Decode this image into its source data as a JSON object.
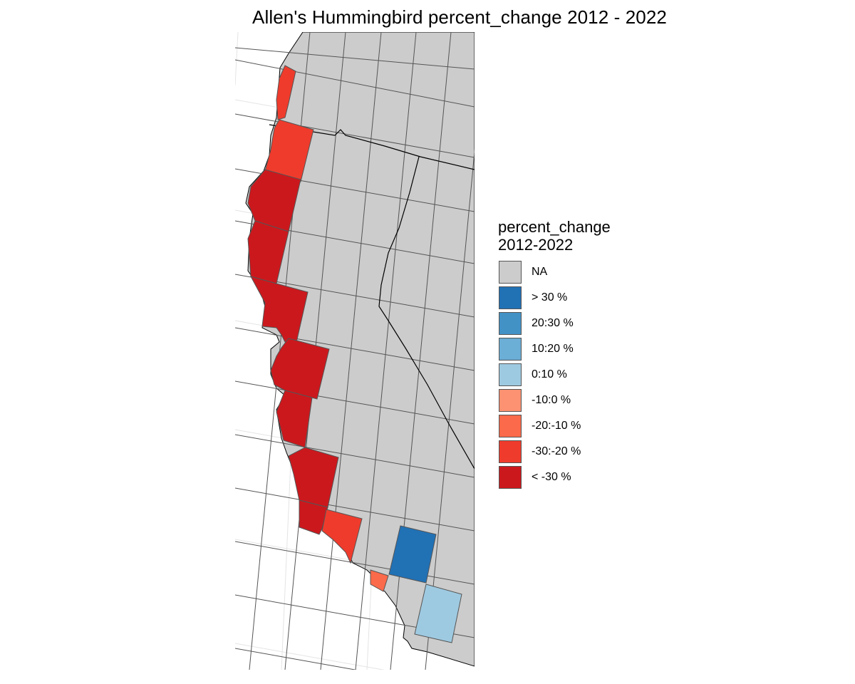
{
  "title": "Allen's Hummingbird percent_change 2012 - 2022",
  "legend": {
    "title": "percent_change\n2012-2022",
    "items": [
      {
        "label": "NA",
        "color": "#cccccc"
      },
      {
        "label": "> 30 %",
        "color": "#2171b5"
      },
      {
        "label": "20:30 %",
        "color": "#4292c6"
      },
      {
        "label": "10:20 %",
        "color": "#6baed6"
      },
      {
        "label": "0:10 %",
        "color": "#9ecae1"
      },
      {
        "label": "-10:0 %",
        "color": "#fc9272"
      },
      {
        "label": "-20:-10 %",
        "color": "#fb6a4a"
      },
      {
        "label": "-30:-20 %",
        "color": "#ef3b2c"
      },
      {
        "label": "< -30 %",
        "color": "#cb181d"
      }
    ]
  },
  "map": {
    "region": "US West Coast (Washington, Oregon, California)",
    "background_color": "#ffffff",
    "land_color": "#cccccc",
    "graticule_color": "#e6e6e6",
    "cell_border_color": "#555555",
    "highlighted_cells": [
      {
        "id": "wa-coast-1",
        "category": "-30:-20 %"
      },
      {
        "id": "or-north-coast",
        "category": "-30:-20 %"
      },
      {
        "id": "or-central-coast",
        "category": "< -30 %"
      },
      {
        "id": "or-south-coast",
        "category": "< -30 %"
      },
      {
        "id": "ca-north-coast",
        "category": "< -30 %"
      },
      {
        "id": "ca-sf-bay",
        "category": "< -30 %"
      },
      {
        "id": "ca-central-coast-1",
        "category": "< -30 %"
      },
      {
        "id": "ca-central-coast-2",
        "category": "< -30 %"
      },
      {
        "id": "ca-central-coast-3",
        "category": "< -30 %"
      },
      {
        "id": "ca-santa-barbara",
        "category": "-30:-20 %"
      },
      {
        "id": "ca-los-angeles",
        "category": "-20:-10 %"
      },
      {
        "id": "ca-inland-empire",
        "category": "> 30 %"
      },
      {
        "id": "ca-san-diego-inland",
        "category": "0:10 %"
      }
    ]
  }
}
